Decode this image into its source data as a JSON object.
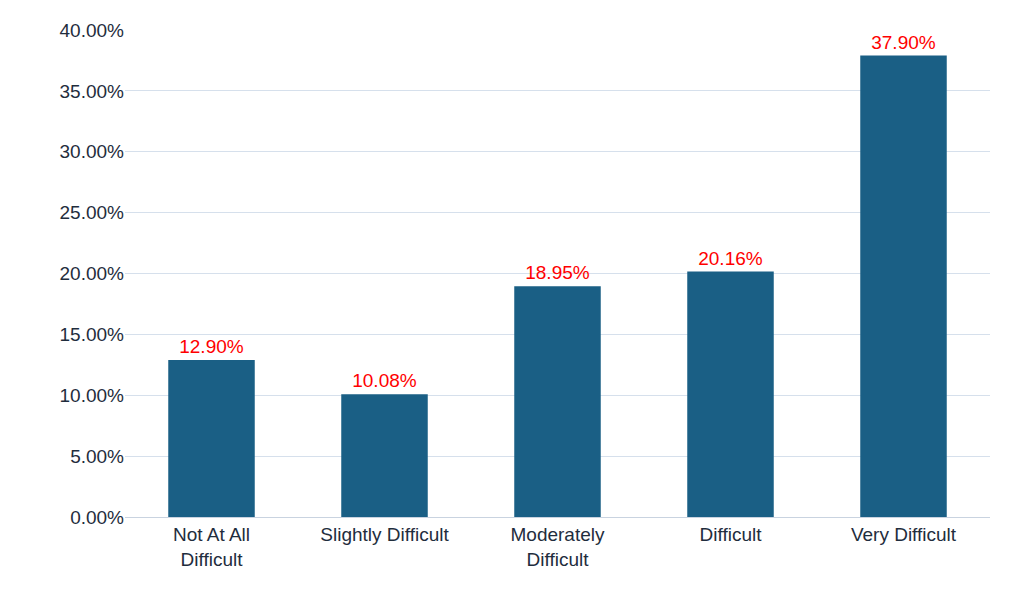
{
  "chart_data": {
    "type": "bar",
    "categories": [
      "Not At All Difficult",
      "Slightly Difficult",
      "Moderately Difficult",
      "Difficult",
      "Very Difficult"
    ],
    "values": [
      12.9,
      10.08,
      18.95,
      20.16,
      37.9
    ],
    "value_labels": [
      "12.90%",
      "10.08%",
      "18.95%",
      "20.16%",
      "37.90%"
    ],
    "data_labels": true,
    "color": "#1a5f85",
    "ylim": [
      0,
      40
    ],
    "yticks": [
      {
        "value": 0,
        "label": "0.00%"
      },
      {
        "value": 5,
        "label": "5.00%"
      },
      {
        "value": 10,
        "label": "10.00%"
      },
      {
        "value": 15,
        "label": "15.00%"
      },
      {
        "value": 20,
        "label": "20.00%"
      },
      {
        "value": 25,
        "label": "25.00%"
      },
      {
        "value": 30,
        "label": "30.00%"
      },
      {
        "value": 35,
        "label": "35.00%"
      },
      {
        "value": 40,
        "label": "40.00%"
      }
    ],
    "grid": true
  }
}
